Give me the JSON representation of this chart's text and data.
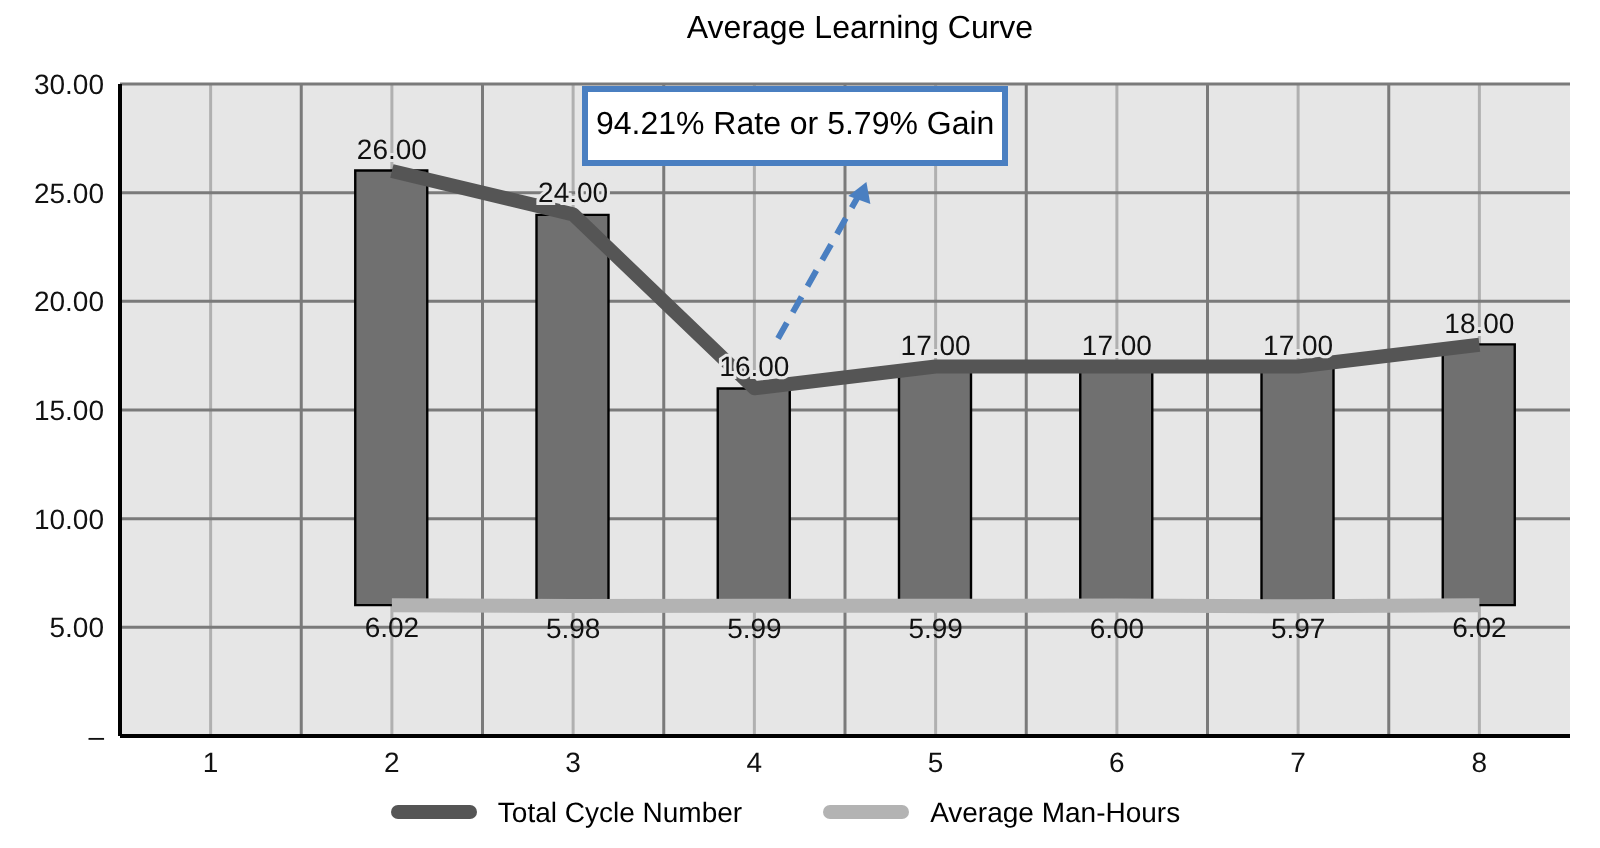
{
  "chart_data": {
    "type": "bar",
    "title": "Average Learning Curve",
    "categories": [
      "1",
      "2",
      "3",
      "4",
      "5",
      "6",
      "7",
      "8"
    ],
    "series": [
      {
        "color": "#707070",
        "base": [
          null,
          6.02,
          5.98,
          5.99,
          5.99,
          6.0,
          5.97,
          6.02
        ],
        "values": [
          null,
          20.0,
          18.0,
          10.0,
          11.0,
          11.0,
          11.0,
          12.0
        ]
      },
      {
        "type": "line",
        "name": "Total Cycle Number",
        "color": "#555555",
        "values": [
          null,
          26,
          24,
          16,
          17,
          17,
          17,
          18
        ],
        "value_labels": [
          null,
          "26.00",
          "24.00",
          "16.00",
          "17.00",
          "17.00",
          "17.00",
          "18.00"
        ]
      },
      {
        "type": "line",
        "name": "Average Man-Hours",
        "color": "#b3b3b3",
        "values": [
          null,
          6.02,
          5.98,
          5.99,
          5.99,
          6.0,
          5.97,
          6.02
        ],
        "value_labels": [
          null,
          "6.02",
          "5.98",
          "5.99",
          "5.99",
          "6.00",
          "5.97",
          "6.02"
        ]
      }
    ],
    "ylim": [
      0,
      30
    ],
    "yticks": [
      {
        "value": 0,
        "label": "–"
      },
      {
        "value": 5,
        "label": "5.00"
      },
      {
        "value": 10,
        "label": "10.00"
      },
      {
        "value": 15,
        "label": "15.00"
      },
      {
        "value": 20,
        "label": "20.00"
      },
      {
        "value": 25,
        "label": "25.00"
      },
      {
        "value": 30,
        "label": "30.00"
      }
    ],
    "grid": true,
    "legend": "bottom",
    "marker": "none",
    "annotations": [
      "94.21% Rate or 5.79% Gain"
    ]
  }
}
